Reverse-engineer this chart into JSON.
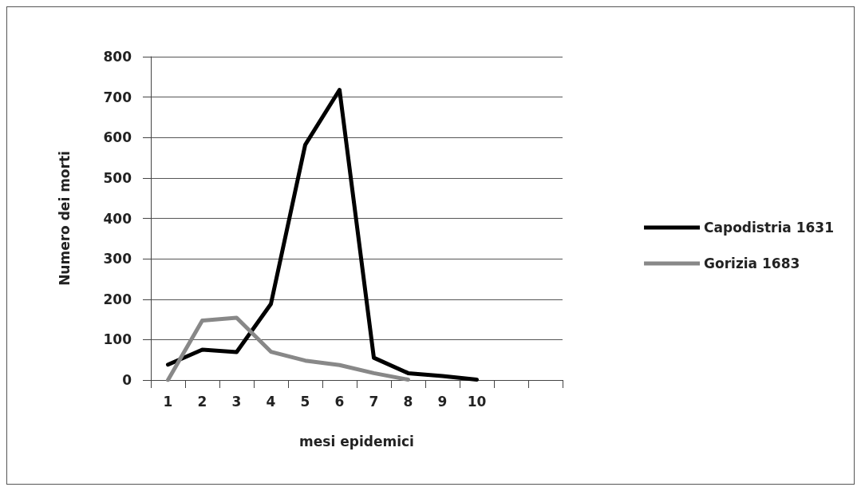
{
  "chart_data": {
    "type": "line",
    "xlabel": "mesi epidemici",
    "ylabel": "Numero dei morti",
    "categories": [
      "1",
      "2",
      "3",
      "4",
      "5",
      "6",
      "7",
      "8",
      "9",
      "10",
      null,
      null
    ],
    "series": [
      {
        "name": "Capodistria 1631",
        "color": "#000000",
        "values": [
          38,
          75,
          69,
          188,
          582,
          718,
          55,
          17,
          10,
          1,
          null,
          null
        ]
      },
      {
        "name": "Gorizia 1683",
        "color": "#888888",
        "values": [
          0,
          147,
          154,
          70,
          48,
          37,
          17,
          1,
          null,
          null,
          null,
          null
        ]
      }
    ],
    "ylim": [
      0,
      800
    ],
    "yticks": [
      0,
      100,
      200,
      300,
      400,
      500,
      600,
      700,
      800
    ],
    "grid": "y",
    "legend": "right",
    "marker": "none",
    "line_style": "solid"
  }
}
